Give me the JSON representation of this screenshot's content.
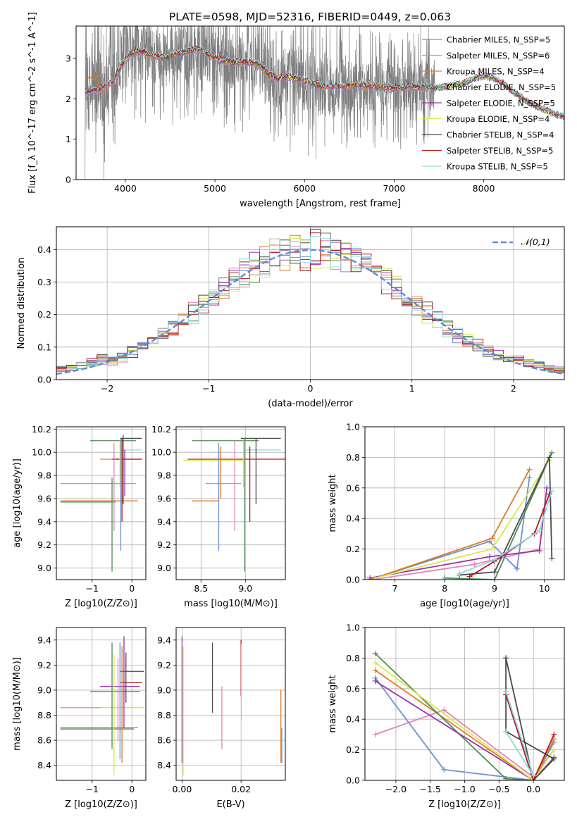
{
  "figure_title": "PLATE=0598, MJD=52316, FIBERID=0449, z=0.063",
  "colors": {
    "chabrier_miles": "#6b8fd6",
    "salpeter_miles": "#e384b8",
    "kroupa_miles": "#e07b25",
    "chabrier_elodie": "#4f8a55",
    "salpeter_elodie": "#9b31ab",
    "kroupa_elodie": "#d8e84a",
    "chabrier_stelib": "#4a4a4a",
    "salpeter_stelib": "#b3171c",
    "kroupa_stelib": "#8fd6e0",
    "data": "#7f7f7f",
    "normal": "#5b8bd6",
    "grid": "#b0b0b0"
  },
  "chart_data": [
    {
      "id": "spectrum",
      "type": "line",
      "title": "PLATE=0598, MJD=52316, FIBERID=0449, z=0.063",
      "xlabel": "wavelength [Angstrom, rest frame]",
      "ylabel": "Flux [f_λ 10^-17 erg cm^-2 s^-1 A^-1]",
      "xlim": [
        3450,
        8900
      ],
      "ylim": [
        0,
        3.8
      ],
      "xticks": [
        4000,
        5000,
        6000,
        7000,
        8000
      ],
      "yticks": [
        0,
        1,
        2,
        3
      ],
      "grid": false,
      "legend_position": "top-right",
      "legend": [
        "Chabrier MILES, N_SSP=5",
        "Salpeter MILES, N_SSP=6",
        "Kroupa MILES, N_SSP=4",
        "Chabrier ELODIE, N_SSP=5",
        "Salpeter ELODIE, N_SSP=5",
        "Kroupa ELODIE, N_SSP=4",
        "Chabrier STELIB, N_SSP=4",
        "Salpeter STELIB, N_SSP=5",
        "Kroupa STELIB, N_SSP=5"
      ],
      "model_continuum": {
        "x": [
          3550,
          3650,
          3750,
          3850,
          3950,
          4050,
          4150,
          4250,
          4350,
          4450,
          4550,
          4650,
          4750,
          4850,
          5000,
          5100,
          5200,
          5350,
          5500,
          5600,
          5700,
          5800,
          6000,
          6200,
          6400,
          6600,
          6800,
          7000,
          7200,
          7400,
          7600,
          7700,
          7800,
          7900,
          8000,
          8100,
          8200,
          8300,
          8400,
          8500,
          8600,
          8700,
          8800,
          8900
        ],
        "y": [
          2.15,
          2.2,
          2.25,
          2.4,
          2.8,
          3.1,
          3.2,
          3.1,
          3.05,
          3.0,
          3.1,
          3.15,
          3.2,
          3.2,
          3.0,
          2.95,
          2.9,
          2.9,
          2.85,
          2.6,
          2.5,
          2.55,
          2.45,
          2.3,
          2.3,
          2.35,
          2.3,
          2.25,
          2.3,
          2.25,
          2.3,
          2.35,
          2.4,
          2.5,
          2.55,
          2.5,
          2.4,
          2.2,
          2.05,
          1.9,
          1.8,
          1.7,
          1.6,
          1.55
        ]
      },
      "data_noise": {
        "x_start": 3550,
        "x_noisy_end": 7450,
        "y_min": 0,
        "y_max": 3.8
      }
    },
    {
      "id": "residuals",
      "type": "bar",
      "xlabel": "(data-model)/error",
      "ylabel": "Normed distribution",
      "xlim": [
        -2.5,
        2.5
      ],
      "ylim": [
        0,
        0.47
      ],
      "xticks": [
        -2,
        -1,
        0,
        1,
        2
      ],
      "yticks": [
        0,
        0.1,
        0.2,
        0.3,
        0.4
      ],
      "grid": true,
      "legend_position": "top-right",
      "legend": [
        "𝒩(0,1)"
      ],
      "bin_width": 0.1,
      "bin_start": -2.5,
      "reference_mean": 0,
      "reference_sigma": 1
    },
    {
      "id": "age_vs_Z",
      "type": "scatter",
      "xlabel": "Z [log10(Z/Z⊙)]",
      "ylabel": "age [log10(age/yr)]",
      "xlim": [
        -1.9,
        0.35
      ],
      "ylim": [
        8.9,
        10.22
      ],
      "xticks": [
        -1,
        0
      ],
      "yticks": [
        9.0,
        9.2,
        9.4,
        9.6,
        9.8,
        10.0,
        10.2
      ],
      "grid": true,
      "segments_horizontal": [
        {
          "y": 10.1,
          "x0": -1.05,
          "x1": 0.1,
          "color": "chabrier_elodie"
        },
        {
          "y": 10.12,
          "x0": -0.3,
          "x1": 0.25,
          "color": "chabrier_stelib"
        },
        {
          "y": 10.02,
          "x0": -0.3,
          "x1": 0.25,
          "color": "kroupa_stelib"
        },
        {
          "y": 9.94,
          "x0": -0.8,
          "x1": 0.25,
          "color": "kroupa_miles"
        },
        {
          "y": 9.94,
          "x0": -0.5,
          "x1": 0.25,
          "color": "salpeter_stelib"
        },
        {
          "y": 9.73,
          "x0": -1.8,
          "x1": 0.1,
          "color": "salpeter_miles"
        },
        {
          "y": 9.58,
          "x0": -1.8,
          "x1": 0.15,
          "color": "kroupa_miles"
        },
        {
          "y": 9.57,
          "x0": -1.8,
          "x1": -0.4,
          "color": "chabrier_elodie"
        }
      ],
      "segments_vertical": [
        {
          "x": -0.45,
          "y0": 9.32,
          "y1": 10.08,
          "color": "salpeter_miles"
        },
        {
          "x": -0.5,
          "y0": 8.97,
          "y1": 9.78,
          "color": "chabrier_elodie"
        },
        {
          "x": -0.28,
          "y0": 9.15,
          "y1": 10.12,
          "color": "chabrier_miles"
        },
        {
          "x": -0.25,
          "y0": 9.4,
          "y1": 10.12,
          "color": "salpeter_stelib"
        },
        {
          "x": -0.22,
          "y0": 9.55,
          "y1": 10.15,
          "color": "chabrier_stelib"
        },
        {
          "x": -0.18,
          "y0": 9.62,
          "y1": 10.02,
          "color": "salpeter_elodie"
        },
        {
          "x": -0.3,
          "y0": 9.7,
          "y1": 10.1,
          "color": "kroupa_elodie"
        }
      ]
    },
    {
      "id": "age_vs_mass",
      "type": "scatter",
      "xlabel": "mass [log10(M/M⊙)]",
      "ylabel": "",
      "xlim": [
        8.22,
        9.45
      ],
      "ylim": [
        8.9,
        10.22
      ],
      "xticks": [
        8.5,
        9.0
      ],
      "yticks": [
        9.0,
        9.2,
        9.4,
        9.6,
        9.8,
        10.0,
        10.2
      ],
      "grid": true,
      "segments_horizontal": [
        {
          "y": 10.1,
          "x0": 8.4,
          "x1": 9.15,
          "color": "chabrier_elodie"
        },
        {
          "y": 10.12,
          "x0": 8.95,
          "x1": 9.4,
          "color": "chabrier_stelib"
        },
        {
          "y": 10.02,
          "x0": 9.0,
          "x1": 9.4,
          "color": "kroupa_stelib"
        },
        {
          "y": 9.94,
          "x0": 8.35,
          "x1": 9.45,
          "color": "salpeter_stelib"
        },
        {
          "y": 9.93,
          "x0": 8.3,
          "x1": 9.0,
          "color": "kroupa_elodie"
        },
        {
          "y": 9.73,
          "x0": 8.55,
          "x1": 8.95,
          "color": "salpeter_miles"
        },
        {
          "y": 9.58,
          "x0": 8.4,
          "x1": 8.7,
          "color": "kroupa_miles"
        }
      ],
      "segments_vertical": [
        {
          "x": 8.7,
          "y0": 9.15,
          "y1": 10.08,
          "color": "chabrier_miles"
        },
        {
          "x": 8.72,
          "y0": 9.6,
          "y1": 10.05,
          "color": "kroupa_miles"
        },
        {
          "x": 8.88,
          "y0": 9.32,
          "y1": 10.1,
          "color": "salpeter_miles"
        },
        {
          "x": 8.99,
          "y0": 8.97,
          "y1": 10.12,
          "color": "chabrier_elodie"
        },
        {
          "x": 9.05,
          "y0": 9.4,
          "y1": 10.05,
          "color": "salpeter_stelib"
        },
        {
          "x": 9.12,
          "y0": 9.55,
          "y1": 10.12,
          "color": "chabrier_stelib"
        },
        {
          "x": 8.98,
          "y0": 9.7,
          "y1": 10.1,
          "color": "kroupa_elodie"
        }
      ]
    },
    {
      "id": "weight_vs_age",
      "type": "line",
      "xlabel": "age [log10(age/yr)]",
      "ylabel": "mass weight",
      "xlim": [
        6.4,
        10.4
      ],
      "ylim": [
        0,
        1.0
      ],
      "xticks": [
        7,
        8,
        9,
        10
      ],
      "yticks": [
        0.0,
        0.2,
        0.4,
        0.6,
        0.8,
        1.0
      ],
      "grid": true,
      "series": [
        {
          "color": "chabrier_miles",
          "x": [
            6.5,
            8.9,
            9.45,
            9.7
          ],
          "y": [
            0.0,
            0.25,
            0.07,
            0.67
          ]
        },
        {
          "color": "salpeter_miles",
          "x": [
            6.55,
            8.6,
            9.9,
            10.0
          ],
          "y": [
            0.0,
            0.1,
            0.2,
            0.46
          ]
        },
        {
          "color": "kroupa_miles",
          "x": [
            6.5,
            8.95,
            9.7
          ],
          "y": [
            0.0,
            0.27,
            0.72
          ]
        },
        {
          "color": "chabrier_elodie",
          "x": [
            8.0,
            9.0,
            10.15
          ],
          "y": [
            0.01,
            0.0,
            0.83
          ]
        },
        {
          "color": "salpeter_elodie",
          "x": [
            6.5,
            8.9,
            9.9,
            10.05
          ],
          "y": [
            0.01,
            0.15,
            0.19,
            0.6
          ]
        },
        {
          "color": "kroupa_elodie",
          "x": [
            6.6,
            8.95,
            10.1
          ],
          "y": [
            0.01,
            0.2,
            0.78
          ]
        },
        {
          "color": "chabrier_stelib",
          "x": [
            8.3,
            9.0,
            10.1,
            10.15
          ],
          "y": [
            0.03,
            0.05,
            0.8,
            0.14
          ]
        },
        {
          "color": "salpeter_stelib",
          "x": [
            8.5,
            9.0,
            9.8,
            10.1
          ],
          "y": [
            0.02,
            0.12,
            0.3,
            0.56
          ]
        },
        {
          "color": "kroupa_stelib",
          "x": [
            8.3,
            9.0,
            9.9,
            10.15
          ],
          "y": [
            0.04,
            0.13,
            0.32,
            0.58
          ]
        }
      ]
    },
    {
      "id": "mass_vs_Z",
      "type": "scatter",
      "xlabel": "Z [log10(Z/Z⊙)]",
      "ylabel": "mass [log10(M/M⊙)]",
      "xlim": [
        -1.9,
        0.35
      ],
      "ylim": [
        8.28,
        9.5
      ],
      "xticks": [
        -1,
        0
      ],
      "yticks": [
        8.4,
        8.6,
        8.8,
        9.0,
        9.2,
        9.4
      ],
      "grid": true,
      "segments_horizontal": [
        {
          "y": 9.15,
          "x0": -0.3,
          "x1": 0.3,
          "color": "chabrier_stelib"
        },
        {
          "y": 9.06,
          "x0": -0.3,
          "x1": 0.25,
          "color": "salpeter_stelib"
        },
        {
          "y": 9.03,
          "x0": -0.8,
          "x1": 0.2,
          "color": "salpeter_elodie"
        },
        {
          "y": 8.99,
          "x0": -1.05,
          "x1": 0.2,
          "color": "chabrier_elodie"
        },
        {
          "y": 8.86,
          "x0": -1.8,
          "x1": 0.2,
          "color": "salpeter_miles"
        },
        {
          "y": 8.86,
          "x0": -0.8,
          "x1": 0.3,
          "color": "kroupa_elodie"
        },
        {
          "y": 8.7,
          "x0": -1.8,
          "x1": 0.15,
          "color": "kroupa_miles"
        },
        {
          "y": 8.69,
          "x0": -1.8,
          "x1": 0.05,
          "color": "chabrier_elodie"
        }
      ],
      "segments_vertical": [
        {
          "x": -0.5,
          "y0": 8.53,
          "y1": 9.38,
          "color": "chabrier_elodie"
        },
        {
          "x": -0.45,
          "y0": 8.32,
          "y1": 9.28,
          "color": "kroupa_elodie"
        },
        {
          "x": -0.3,
          "y0": 8.45,
          "y1": 9.38,
          "color": "chabrier_miles"
        },
        {
          "x": -0.25,
          "y0": 8.42,
          "y1": 9.35,
          "color": "kroupa_miles"
        },
        {
          "x": -0.2,
          "y0": 8.7,
          "y1": 9.43,
          "color": "salpeter_elodie"
        },
        {
          "x": -0.15,
          "y0": 8.9,
          "y1": 9.3,
          "color": "chabrier_stelib"
        },
        {
          "x": -0.35,
          "y0": 8.6,
          "y1": 9.25,
          "color": "salpeter_miles"
        }
      ]
    },
    {
      "id": "mass_vs_ebv",
      "type": "scatter",
      "xlabel": "E(B-V)",
      "ylabel": "",
      "xlim": [
        -0.002,
        0.035
      ],
      "ylim": [
        8.28,
        9.5
      ],
      "xticks": [
        0.0,
        0.02
      ],
      "xtick_labels": [
        "0.00",
        "0.02"
      ],
      "yticks": [
        8.4,
        8.6,
        8.8,
        9.0,
        9.2,
        9.4
      ],
      "grid": true,
      "segments_vertical": [
        {
          "x": 0.0,
          "y0": 8.42,
          "y1": 9.43,
          "color": "salpeter_elodie"
        },
        {
          "x": 0.0004,
          "y0": 8.32,
          "y1": 9.35,
          "color": "kroupa_elodie"
        },
        {
          "x": 0.0103,
          "y0": 8.82,
          "y1": 9.38,
          "color": "chabrier_stelib"
        },
        {
          "x": 0.0135,
          "y0": 8.53,
          "y1": 9.03,
          "color": "salpeter_miles"
        },
        {
          "x": 0.02,
          "y0": 8.95,
          "y1": 9.4,
          "color": "salpeter_stelib"
        },
        {
          "x": 0.0201,
          "y0": 8.76,
          "y1": 9.37,
          "color": "kroupa_stelib"
        },
        {
          "x": 0.0335,
          "y0": 8.42,
          "y1": 9.0,
          "color": "kroupa_miles"
        },
        {
          "x": 0.0338,
          "y0": 8.42,
          "y1": 8.7,
          "color": "chabrier_miles"
        }
      ]
    },
    {
      "id": "weight_vs_Z",
      "type": "line",
      "xlabel": "Z [log10(Z/Z⊙)]",
      "ylabel": "mass weight",
      "xlim": [
        -2.45,
        0.45
      ],
      "ylim": [
        0,
        1.0
      ],
      "xticks": [
        -2.0,
        -1.5,
        -1.0,
        -0.5,
        0.0
      ],
      "xtick_labels": [
        "−2.0",
        "−1.5",
        "−1.0",
        "−0.5",
        "0.0"
      ],
      "yticks": [
        0.0,
        0.2,
        0.4,
        0.6,
        0.8,
        1.0
      ],
      "grid": true,
      "series": [
        {
          "color": "chabrier_miles",
          "x": [
            -2.3,
            -1.3,
            0.0,
            0.3
          ],
          "y": [
            0.67,
            0.07,
            0.0,
            0.25
          ]
        },
        {
          "color": "salpeter_miles",
          "x": [
            -2.3,
            -1.3,
            0.0,
            0.3
          ],
          "y": [
            0.3,
            0.46,
            0.02,
            0.2
          ]
        },
        {
          "color": "kroupa_miles",
          "x": [
            -2.3,
            0.0,
            0.3
          ],
          "y": [
            0.72,
            0.0,
            0.27
          ]
        },
        {
          "color": "chabrier_elodie",
          "x": [
            -2.3,
            -0.4,
            0.0
          ],
          "y": [
            0.83,
            0.01,
            0.0
          ]
        },
        {
          "color": "salpeter_elodie",
          "x": [
            -2.3,
            0.0,
            0.3
          ],
          "y": [
            0.65,
            0.0,
            0.15
          ]
        },
        {
          "color": "kroupa_elodie",
          "x": [
            -2.3,
            0.0,
            0.3
          ],
          "y": [
            0.77,
            0.0,
            0.2
          ]
        },
        {
          "color": "chabrier_stelib",
          "x": [
            -0.4,
            0.0,
            0.3,
            -0.4,
            -0.4
          ],
          "y": [
            0.8,
            0.0,
            0.14,
            0.32,
            0.8
          ]
        },
        {
          "color": "salpeter_stelib",
          "x": [
            -0.4,
            0.0,
            0.3
          ],
          "y": [
            0.56,
            0.0,
            0.3
          ]
        },
        {
          "color": "kroupa_stelib",
          "x": [
            -0.4,
            0.0,
            -0.4
          ],
          "y": [
            0.58,
            0.03,
            0.32
          ]
        }
      ]
    }
  ]
}
